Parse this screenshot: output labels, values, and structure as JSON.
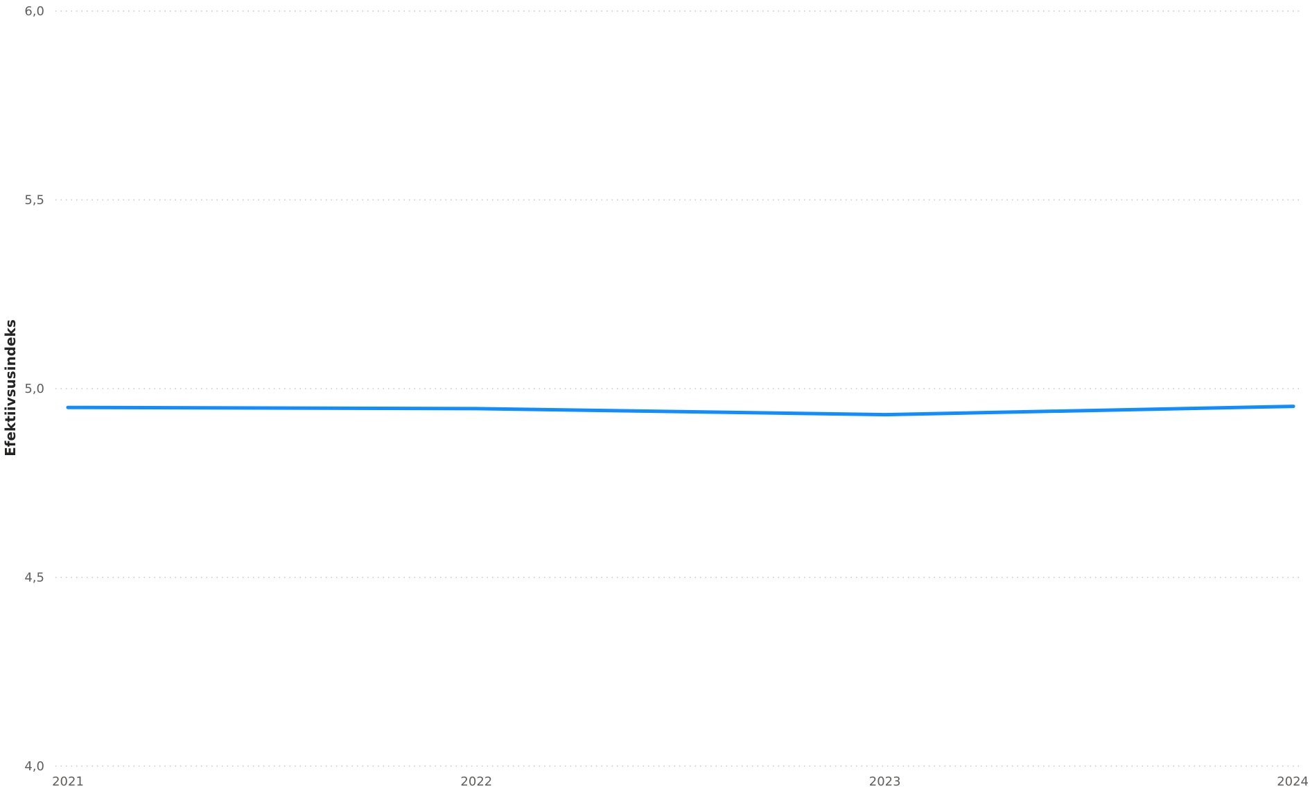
{
  "chart_data": {
    "type": "line",
    "title": "",
    "xlabel": "",
    "ylabel": "Efektiivsusindeks",
    "categories": [
      "2021",
      "2022",
      "2023",
      "2024"
    ],
    "series": [
      {
        "values": [
          4.95,
          4.947,
          4.931,
          4.953
        ],
        "color": "#118dff"
      }
    ],
    "ylim": [
      4.0,
      6.0
    ],
    "yticks": [
      {
        "value": 4.0,
        "label": "4,0"
      },
      {
        "value": 4.5,
        "label": "4,5"
      },
      {
        "value": 5.0,
        "label": "5,0"
      },
      {
        "value": 5.5,
        "label": "5,5"
      },
      {
        "value": 6.0,
        "label": "6,0"
      }
    ],
    "grid": true,
    "grid_style": "dotted",
    "grid_color": "#c8c6c4",
    "legend": "none"
  }
}
